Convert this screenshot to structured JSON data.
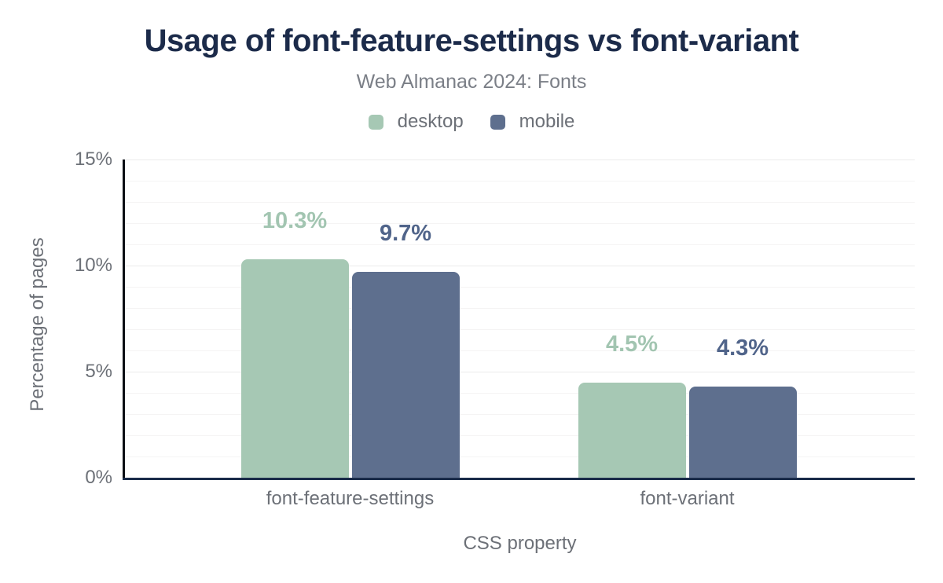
{
  "header": {
    "title": "Usage of font-feature-settings vs font-variant",
    "subtitle": "Web Almanac 2024: Fonts"
  },
  "chart_data": {
    "type": "bar",
    "title": "Usage of font-feature-settings vs font-variant",
    "subtitle": "Web Almanac 2024: Fonts",
    "categories": [
      "font-feature-settings",
      "font-variant"
    ],
    "series": [
      {
        "name": "desktop",
        "values": [
          10.3,
          4.5
        ],
        "color": "#a6c8b4",
        "label_color": "#a2c5b1"
      },
      {
        "name": "mobile",
        "values": [
          9.7,
          4.3
        ],
        "color": "#5e6f8e",
        "label_color": "#50648a"
      }
    ],
    "data_labels": [
      [
        "10.3%",
        "4.5%"
      ],
      [
        "9.7%",
        "4.3%"
      ]
    ],
    "xlabel": "CSS property",
    "ylabel": "Percentage of pages",
    "ylim": [
      0,
      15
    ],
    "yticks": [
      {
        "value": 0,
        "label": "0%"
      },
      {
        "value": 5,
        "label": "5%"
      },
      {
        "value": 10,
        "label": "10%"
      },
      {
        "value": 15,
        "label": "15%"
      }
    ],
    "grid": {
      "minor_step": 1,
      "major_step": 5,
      "on": true
    },
    "legend_position": "top"
  },
  "colors": {
    "title": "#1c2b4a",
    "subtitle": "#7b7f87",
    "axis_text": "#6c7077",
    "baseline": "#1a2b49",
    "y_axis_line": "#0b0e14",
    "grid_minor": "#f5f4f4",
    "grid_major": "#ebebeb",
    "background": "#ffffff"
  }
}
